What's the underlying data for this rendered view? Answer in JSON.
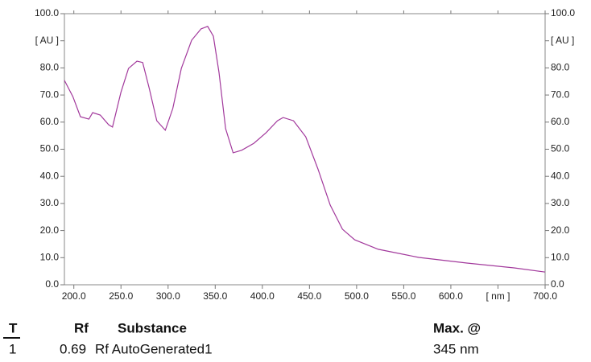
{
  "chart_data": {
    "type": "line",
    "xlim": [
      190,
      700
    ],
    "xticks": [
      {
        "value": 200,
        "label": "200.0"
      },
      {
        "value": 250,
        "label": "250.0"
      },
      {
        "value": 300,
        "label": "300.0"
      },
      {
        "value": 350,
        "label": "350.0"
      },
      {
        "value": 400,
        "label": "400.0"
      },
      {
        "value": 450,
        "label": "450.0"
      },
      {
        "value": 500,
        "label": "500.0"
      },
      {
        "value": 550,
        "label": "550.0"
      },
      {
        "value": 600,
        "label": "600.0"
      },
      {
        "value": 650,
        "label": "[ nm ]"
      },
      {
        "value": 700,
        "label": "700.0"
      }
    ],
    "ylim": [
      0,
      100
    ],
    "yticks": [
      {
        "value": 0,
        "label": "0.0"
      },
      {
        "value": 10,
        "label": "10.0"
      },
      {
        "value": 20,
        "label": "20.0"
      },
      {
        "value": 30,
        "label": "30.0"
      },
      {
        "value": 40,
        "label": "40.0"
      },
      {
        "value": 50,
        "label": "50.0"
      },
      {
        "value": 60,
        "label": "60.0"
      },
      {
        "value": 70,
        "label": "70.0"
      },
      {
        "value": 80,
        "label": "80.0"
      },
      {
        "value": 90,
        "label": "[ AU ]"
      },
      {
        "value": 100,
        "label": "100.0"
      }
    ],
    "series": [
      {
        "color": "#a2399c",
        "x": [
          190,
          199,
          207,
          216,
          220,
          228,
          237,
          241,
          250,
          258,
          267,
          273,
          280,
          288,
          297,
          305,
          314,
          325,
          335,
          342,
          348,
          354,
          361,
          369,
          378,
          391,
          404,
          416,
          422,
          433,
          446,
          459,
          472,
          485,
          498,
          523,
          566,
          617,
          668,
          700
        ],
        "values": [
          75.4,
          69.4,
          62,
          61.1,
          63.5,
          62.6,
          59,
          58.2,
          71,
          79.8,
          82.5,
          82,
          72.4,
          60.5,
          57,
          65,
          79.8,
          90.2,
          94.4,
          95.3,
          91.7,
          78.3,
          57.6,
          48.7,
          49.6,
          52.2,
          56.1,
          60.5,
          61.7,
          60.5,
          54.6,
          42.7,
          29.4,
          20.5,
          16.6,
          13.1,
          10.1,
          8,
          6.2,
          4.7
        ]
      }
    ]
  },
  "table": {
    "headers": [
      "T",
      "Rf",
      "Substance",
      "Max. @"
    ],
    "rows": [
      [
        "1",
        "0.69",
        "Rf AutoGenerated1",
        "345 nm"
      ]
    ]
  }
}
